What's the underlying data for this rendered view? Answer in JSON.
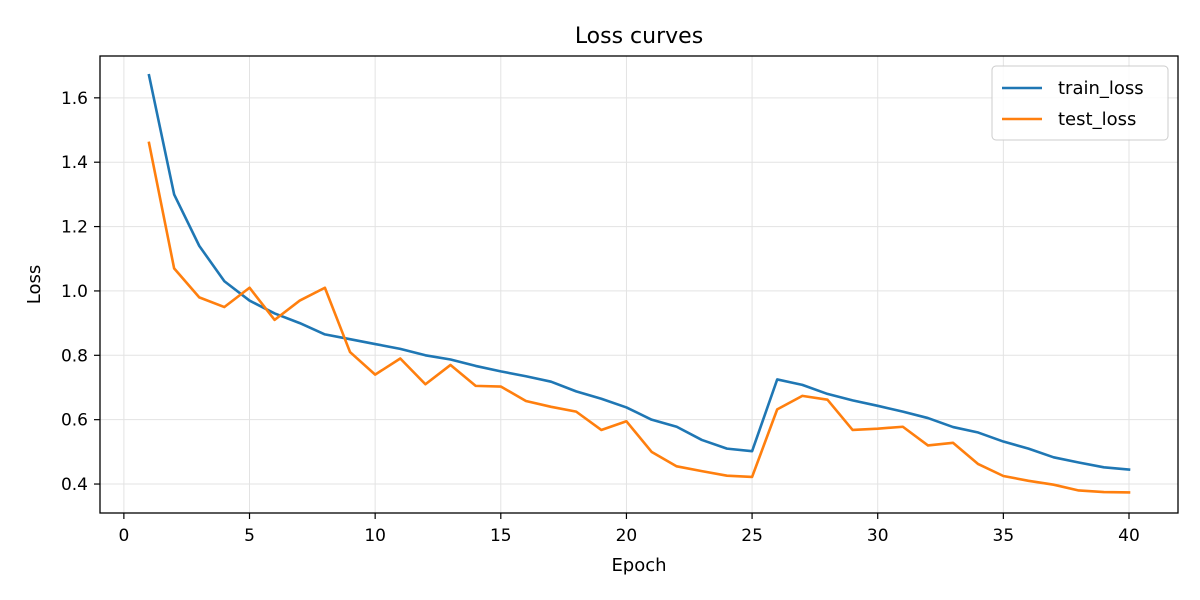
{
  "chart_data": {
    "type": "line",
    "title": "Loss curves",
    "xlabel": "Epoch",
    "ylabel": "Loss",
    "xlim": [
      -0.95,
      41.95
    ],
    "ylim": [
      0.31,
      1.73
    ],
    "xticks": [
      0,
      5,
      10,
      15,
      20,
      25,
      30,
      35,
      40
    ],
    "yticks": [
      0.4,
      0.6,
      0.8,
      1.0,
      1.2,
      1.4,
      1.6
    ],
    "grid": true,
    "legend_position": "top-right",
    "x": [
      1,
      2,
      3,
      4,
      5,
      6,
      7,
      8,
      9,
      10,
      11,
      12,
      13,
      14,
      15,
      16,
      17,
      18,
      19,
      20,
      21,
      22,
      23,
      24,
      25,
      26,
      27,
      28,
      29,
      30,
      31,
      32,
      33,
      34,
      35,
      36,
      37,
      38,
      39,
      40
    ],
    "series": [
      {
        "name": "train_loss",
        "color": "#1f77b4",
        "values": [
          1.67,
          1.3,
          1.14,
          1.03,
          0.97,
          0.93,
          0.9,
          0.865,
          0.85,
          0.835,
          0.82,
          0.8,
          0.787,
          0.767,
          0.75,
          0.735,
          0.718,
          0.688,
          0.665,
          0.638,
          0.6,
          0.578,
          0.537,
          0.51,
          0.502,
          0.725,
          0.708,
          0.68,
          0.66,
          0.643,
          0.625,
          0.605,
          0.577,
          0.56,
          0.532,
          0.51,
          0.483,
          0.467,
          0.452,
          0.445
        ]
      },
      {
        "name": "test_loss",
        "color": "#ff7f0e",
        "values": [
          1.46,
          1.07,
          0.98,
          0.95,
          1.01,
          0.91,
          0.97,
          1.01,
          0.81,
          0.74,
          0.79,
          0.71,
          0.77,
          0.705,
          0.703,
          0.658,
          0.64,
          0.625,
          0.568,
          0.595,
          0.5,
          0.455,
          0.44,
          0.426,
          0.422,
          0.632,
          0.674,
          0.662,
          0.568,
          0.572,
          0.578,
          0.52,
          0.528,
          0.462,
          0.425,
          0.41,
          0.398,
          0.38,
          0.375,
          0.374
        ]
      }
    ]
  }
}
